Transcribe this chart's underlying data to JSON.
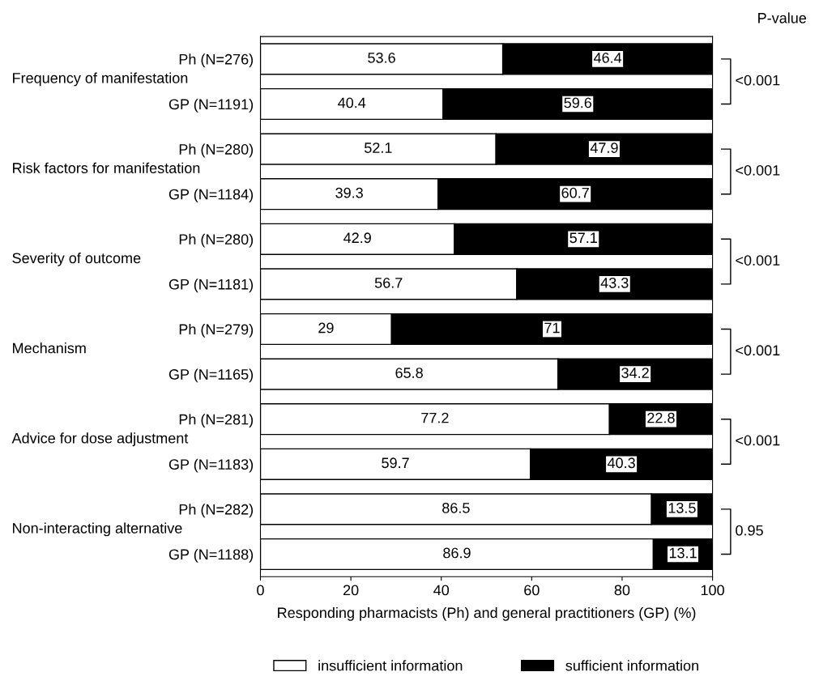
{
  "chart_data": {
    "type": "bar",
    "orientation": "horizontal",
    "stacked": true,
    "categories": [
      "Ph (N=276)",
      "GP (N=1191)",
      "Ph (N=280)",
      "GP (N=1184)",
      "Ph (N=280)",
      "GP (N=1181)",
      "Ph (N=279)",
      "GP (N=1165)",
      "Ph (N=281)",
      "GP (N=1183)",
      "Ph (N=282)",
      "GP (N=1188)"
    ],
    "series": [
      {
        "name": "insufficient information",
        "color": "#ffffff",
        "values": [
          53.6,
          40.4,
          52.1,
          39.3,
          42.9,
          56.7,
          29,
          65.8,
          77.2,
          59.7,
          86.5,
          86.9
        ]
      },
      {
        "name": "sufficient information",
        "color": "#000000",
        "values": [
          46.4,
          59.6,
          47.9,
          60.7,
          57.1,
          43.3,
          71,
          34.2,
          22.8,
          40.3,
          13.5,
          13.1
        ]
      }
    ],
    "xlabel": "Responding pharmacists (Ph) and general practitioners (GP) (%)",
    "xlim": [
      0,
      100
    ],
    "xticks": [
      0,
      20,
      40,
      60,
      80,
      100
    ],
    "annotations": [
      "P-value",
      "Frequency of manifestation",
      "<0.001",
      "Risk factors for manifestation",
      "<0.001",
      "Severity of outcome",
      "<0.001",
      "Mechanism",
      "<0.001",
      "Advice for dose adjustment",
      "<0.001",
      "Non-interacting alternative",
      "0.95"
    ],
    "data_labels": true,
    "grid": false,
    "legend": "bottom"
  }
}
